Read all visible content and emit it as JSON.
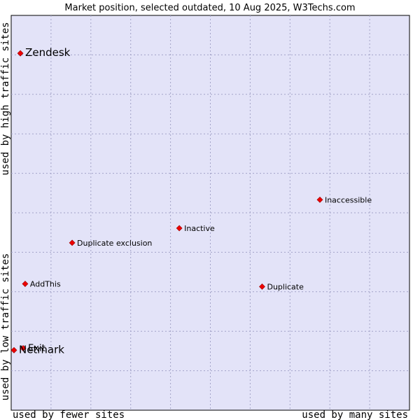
{
  "chart_data": {
    "type": "scatter",
    "title": "Market position, selected outdated, 10 Aug 2025, W3Techs.com",
    "xlabel_low": "used by fewer sites",
    "xlabel_high": "used by many sites",
    "ylabel_low": "used by low traffic sites",
    "ylabel_high": "used by high traffic sites",
    "xlim": [
      0,
      100
    ],
    "ylim": [
      0,
      100
    ],
    "grid": true,
    "colors": {
      "plot_bg": "#e3e3f8",
      "marker": "#ee0000",
      "border": "#000000"
    },
    "points": [
      {
        "label": "Zendesk",
        "x": 2.3,
        "y": 90.4,
        "size": "large"
      },
      {
        "label": "Inaccessible",
        "x": 77.5,
        "y": 53.3,
        "size": "small"
      },
      {
        "label": "Inactive",
        "x": 42.2,
        "y": 46.1,
        "size": "small"
      },
      {
        "label": "Duplicate exclusion",
        "x": 15.3,
        "y": 42.4,
        "size": "small"
      },
      {
        "label": "AddThis",
        "x": 3.5,
        "y": 32.0,
        "size": "small"
      },
      {
        "label": "Duplicate",
        "x": 63.0,
        "y": 31.3,
        "size": "small"
      },
      {
        "label": "Exit",
        "x": 3.0,
        "y": 15.7,
        "size": "medium"
      },
      {
        "label": "Netmark",
        "x": 0.7,
        "y": 15.2,
        "size": "large"
      }
    ]
  }
}
